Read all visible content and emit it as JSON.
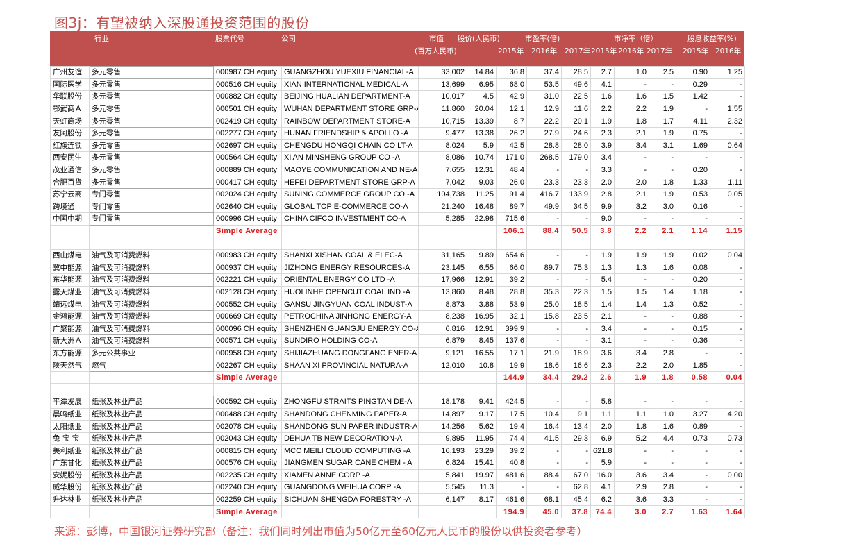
{
  "title": "图3j：有望被纳入深股通投资范围的股份",
  "header": {
    "industry": "行业",
    "code": "股票代号",
    "company": "公司",
    "mktcap": "市值",
    "mktcap_unit": "(百万人民币)",
    "price": "股价(人民币)",
    "pe": "市盈率(倍)",
    "pb": "市净率（倍）",
    "dy": "股息收益率(%)",
    "years": [
      "2015年",
      "2016年",
      "2017年",
      "2015年",
      "2016年",
      "2017年",
      "2015年",
      "2016年"
    ]
  },
  "colors": {
    "header_bg": "#c0504d",
    "average_text": "#d7191c",
    "title": "#c0504d"
  },
  "sections": [
    {
      "rows": [
        [
          "广州友谊",
          "多元零售",
          "000987 CH equity",
          "GUANGZHOU YUEXIU FINANCIAL-A",
          "33,002",
          "14.84",
          "36.8",
          "37.4",
          "28.5",
          "2.7",
          "1.0",
          "2.5",
          "0.90",
          "1.25"
        ],
        [
          "国际医学",
          "多元零售",
          "000516 CH equity",
          "XIAN INTERNATIONAL MEDICAL-A",
          "13,699",
          "6.95",
          "68.0",
          "53.5",
          "49.6",
          "4.1",
          "-",
          "-",
          "0.29",
          "-"
        ],
        [
          "华联股份",
          "多元零售",
          "000882 CH equity",
          "BEIJING HUALIAN DEPARTMENT-A",
          "10,017",
          "4.5",
          "42.9",
          "31.0",
          "22.5",
          "1.6",
          "1.6",
          "1.5",
          "1.42",
          "-"
        ],
        [
          "鄂武商Ａ",
          "多元零售",
          "000501 CH equity",
          "WUHAN DEPARTMENT STORE GRP-A",
          "11,860",
          "20.04",
          "12.1",
          "12.9",
          "11.6",
          "2.2",
          "2.2",
          "1.9",
          "-",
          "1.55"
        ],
        [
          "天虹商场",
          "多元零售",
          "002419 CH equity",
          "RAINBOW DEPARTMENT STORE-A",
          "10,715",
          "13.39",
          "8.7",
          "22.2",
          "20.1",
          "1.9",
          "1.8",
          "1.7",
          "4.11",
          "2.32"
        ],
        [
          "友阿股份",
          "多元零售",
          "002277 CH equity",
          "HUNAN FRIENDSHIP & APOLLO -A",
          "9,477",
          "13.38",
          "26.2",
          "27.9",
          "24.6",
          "2.3",
          "2.1",
          "1.9",
          "0.75",
          "-"
        ],
        [
          "红旗连锁",
          "多元零售",
          "002697 CH equity",
          "CHENGDU HONGQI CHAIN CO LT-A",
          "8,024",
          "5.9",
          "42.5",
          "28.8",
          "28.0",
          "3.9",
          "3.4",
          "3.1",
          "1.69",
          "0.64"
        ],
        [
          "西安民生",
          "多元零售",
          "000564 CH equity",
          "XI'AN MINSHENG GROUP CO -A",
          "8,086",
          "10.74",
          "171.0",
          "268.5",
          "179.0",
          "3.4",
          "-",
          "-",
          "-",
          "-"
        ],
        [
          "茂业通信",
          "多元零售",
          "000889 CH equity",
          "MAOYE COMMUNICATION AND NE-A",
          "7,655",
          "12.31",
          "48.4",
          "-",
          "-",
          "3.3",
          "-",
          "-",
          "0.20",
          "-"
        ],
        [
          "合肥百货",
          "多元零售",
          "000417 CH equity",
          "HEFEI DEPARTMENT STORE GRP-A",
          "7,042",
          "9.03",
          "26.0",
          "23.3",
          "23.3",
          "2.0",
          "2.0",
          "1.8",
          "1.33",
          "1.11"
        ],
        [
          "苏宁云商",
          "专门零售",
          "002024 CH equity",
          "SUNING COMMERCE GROUP CO -A",
          "104,738",
          "11.25",
          "91.4",
          "416.7",
          "133.9",
          "2.8",
          "2.1",
          "1.9",
          "0.53",
          "0.05"
        ],
        [
          "跨境通",
          "专门零售",
          "002640 CH equity",
          "GLOBAL TOP E-COMMERCE CO-A",
          "21,240",
          "16.48",
          "89.7",
          "49.9",
          "34.5",
          "9.9",
          "3.2",
          "3.0",
          "0.16",
          "-"
        ],
        [
          "中国中期",
          "专门零售",
          "000996 CH equity",
          "CHINA CIFCO INVESTMENT CO-A",
          "5,285",
          "22.98",
          "715.6",
          "-",
          "-",
          "9.0",
          "-",
          "-",
          "-",
          "-"
        ]
      ],
      "average": {
        "label": "Simple Average",
        "values": [
          "106.1",
          "88.4",
          "50.5",
          "3.8",
          "2.2",
          "2.1",
          "1.14",
          "1.15"
        ]
      }
    },
    {
      "rows": [
        [
          "西山煤电",
          "油气及可消费燃料",
          "000983 CH equity",
          "SHANXI XISHAN COAL & ELEC-A",
          "31,165",
          "9.89",
          "654.6",
          "-",
          "-",
          "1.9",
          "1.9",
          "1.9",
          "0.02",
          "0.04"
        ],
        [
          "冀中能源",
          "油气及可消费燃料",
          "000937 CH equity",
          "JIZHONG ENERGY RESOURCES-A",
          "23,145",
          "6.55",
          "66.0",
          "89.7",
          "75.3",
          "1.3",
          "1.3",
          "1.6",
          "0.08",
          "-"
        ],
        [
          "东华能源",
          "油气及可消费燃料",
          "002221 CH equity",
          "ORIENTAL ENERGY CO LTD -A",
          "17,966",
          "12.91",
          "39.2",
          "-",
          "-",
          "5.4",
          "-",
          "-",
          "0.20",
          "-"
        ],
        [
          "露天煤业",
          "油气及可消费燃料",
          "002128 CH equity",
          "HUOLINHE OPENCUT COAL IND -A",
          "13,860",
          "8.48",
          "28.8",
          "35.3",
          "22.3",
          "1.5",
          "1.5",
          "1.4",
          "1.18",
          "-"
        ],
        [
          "靖远煤电",
          "油气及可消费燃料",
          "000552 CH equity",
          "GANSU JINGYUAN COAL INDUST-A",
          "8,873",
          "3.88",
          "53.9",
          "25.0",
          "18.5",
          "1.4",
          "1.4",
          "1.3",
          "0.52",
          "-"
        ],
        [
          "金鸿能源",
          "油气及可消费燃料",
          "000669 CH equity",
          "PETROCHINA JINHONG ENERGY-A",
          "8,238",
          "16.95",
          "32.1",
          "15.8",
          "23.5",
          "2.1",
          "-",
          "-",
          "0.88",
          "-"
        ],
        [
          "广聚能源",
          "油气及可消费燃料",
          "000096 CH equity",
          "SHENZHEN GUANGJU ENERGY CO-A",
          "6,816",
          "12.91",
          "399.9",
          "-",
          "-",
          "3.4",
          "-",
          "-",
          "0.15",
          "-"
        ],
        [
          "新大洲Ａ",
          "油气及可消费燃料",
          "000571 CH equity",
          "SUNDIRO HOLDING CO-A",
          "6,879",
          "8.45",
          "137.6",
          "-",
          "-",
          "3.1",
          "-",
          "-",
          "0.36",
          "-"
        ],
        [
          "东方能源",
          "多元公共事业",
          "000958 CH equity",
          "SHIJIAZHUANG DONGFANG ENER-A",
          "9,121",
          "16.55",
          "17.1",
          "21.9",
          "18.9",
          "3.6",
          "3.4",
          "2.8",
          "-",
          "-"
        ],
        [
          "陕天然气",
          "燃气",
          "002267 CH equity",
          "SHAAN XI PROVINCIAL NATURA-A",
          "12,010",
          "10.8",
          "19.9",
          "18.6",
          "16.6",
          "2.3",
          "2.2",
          "2.0",
          "1.85",
          "-"
        ]
      ],
      "average": {
        "label": "Simple Average",
        "values": [
          "144.9",
          "34.4",
          "29.2",
          "2.6",
          "1.9",
          "1.8",
          "0.58",
          "0.04"
        ]
      }
    },
    {
      "rows": [
        [
          "平潭发展",
          "纸张及林业产品",
          "000592 CH equity",
          "ZHONGFU STRAITS PINGTAN DE-A",
          "18,178",
          "9.41",
          "424.5",
          "-",
          "-",
          "5.8",
          "-",
          "-",
          "-",
          "-"
        ],
        [
          "晨鸣纸业",
          "纸张及林业产品",
          "000488 CH equity",
          "SHANDONG CHENMING PAPER-A",
          "14,897",
          "9.17",
          "17.5",
          "10.4",
          "9.1",
          "1.1",
          "1.1",
          "1.0",
          "3.27",
          "4.20"
        ],
        [
          "太阳纸业",
          "纸张及林业产品",
          "002078 CH equity",
          "SHANDONG SUN PAPER INDUSTR-A",
          "14,256",
          "5.62",
          "19.4",
          "16.4",
          "13.4",
          "2.0",
          "1.8",
          "1.6",
          "0.89",
          "-"
        ],
        [
          "兔 宝 宝",
          "纸张及林业产品",
          "002043 CH equity",
          "DEHUA TB NEW DECORATION-A",
          "9,895",
          "11.95",
          "74.4",
          "41.5",
          "29.3",
          "6.9",
          "5.2",
          "4.4",
          "0.73",
          "0.73"
        ],
        [
          "美利纸业",
          "纸张及林业产品",
          "000815 CH equity",
          "MCC MEILI CLOUD COMPUTING -A",
          "16,193",
          "23.29",
          "39.2",
          "-",
          "-",
          "621.8",
          "-",
          "-",
          "-",
          "-"
        ],
        [
          "广东甘化",
          "纸张及林业产品",
          "000576 CH equity",
          "JIANGMEN SUGAR CANE CHEM - A",
          "6,824",
          "15.41",
          "40.8",
          "-",
          "-",
          "5.9",
          "-",
          "-",
          "-",
          "-"
        ],
        [
          "安妮股份",
          "纸张及林业产品",
          "002235 CH equity",
          "XIAMEN ANNE CORP -A",
          "5,841",
          "19.97",
          "481.6",
          "88.4",
          "67.0",
          "16.0",
          "3.6",
          "3.4",
          "-",
          "0.00"
        ],
        [
          "威华股份",
          "纸张及林业产品",
          "002240 CH equity",
          "GUANGDONG WEIHUA CORP -A",
          "5,545",
          "11.3",
          "-",
          "-",
          "62.8",
          "4.1",
          "2.9",
          "2.8",
          "-",
          "-"
        ],
        [
          "升达林业",
          "纸张及林业产品",
          "002259 CH equity",
          "SICHUAN SHENGDA FORESTRY -A",
          "6,147",
          "8.17",
          "461.6",
          "68.1",
          "45.4",
          "6.2",
          "3.6",
          "3.3",
          "-",
          "-"
        ]
      ],
      "average": {
        "label": "Simple Average",
        "values": [
          "194.9",
          "45.0",
          "37.8",
          "74.4",
          "3.0",
          "2.7",
          "1.63",
          "1.64"
        ]
      }
    }
  ],
  "source": "来源：彭博，中国银河证券研究部（备注：我们同时列出市值为50亿元至60亿元人民币的股份以供投资者参考）"
}
